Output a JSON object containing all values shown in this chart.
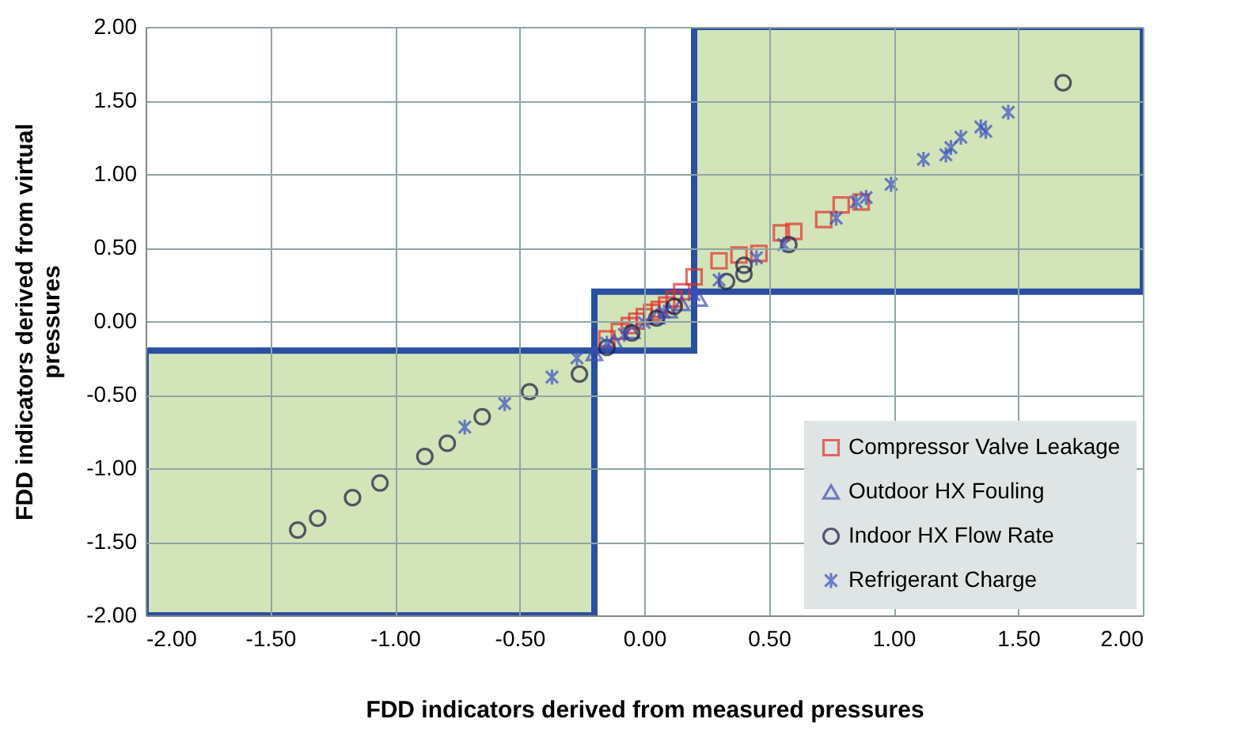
{
  "chart_data": {
    "type": "scatter",
    "xlabel": "FDD indicators derived from measured pressures",
    "ylabel": "FDD indicators derived from virtual pressures",
    "xlim": [
      -2,
      2
    ],
    "ylim": [
      -2,
      2
    ],
    "xticks": [
      {
        "value": -2,
        "label": "-2.00"
      },
      {
        "value": -1.5,
        "label": "-1.50"
      },
      {
        "value": -1,
        "label": "-1.00"
      },
      {
        "value": -0.5,
        "label": "-0.50"
      },
      {
        "value": 0,
        "label": "0.00"
      },
      {
        "value": 0.5,
        "label": "0.50"
      },
      {
        "value": 1,
        "label": "1.00"
      },
      {
        "value": 1.5,
        "label": "1.50"
      },
      {
        "value": 2,
        "label": "2.00"
      }
    ],
    "yticks": [
      {
        "value": -2,
        "label": "-2.00"
      },
      {
        "value": -1.5,
        "label": "-1.50"
      },
      {
        "value": -1,
        "label": "-1.00"
      },
      {
        "value": -0.5,
        "label": "-0.50"
      },
      {
        "value": 0,
        "label": "0.00"
      },
      {
        "value": 0.5,
        "label": "0.50"
      },
      {
        "value": 1,
        "label": "1.00"
      },
      {
        "value": 1.5,
        "label": "1.50"
      },
      {
        "value": 2,
        "label": "2.00"
      }
    ],
    "grid": true,
    "legend": "bottom right",
    "bands": [
      {
        "axis": "x",
        "from": -2,
        "to": -0.2,
        "color": "#d2e4b8"
      },
      {
        "axis": "x",
        "from": -0.2,
        "to": 0.2,
        "color": "#d2e4b8"
      },
      {
        "axis": "x",
        "from": 0.2,
        "to": 2,
        "color": "#d2e4b8"
      }
    ],
    "series": [
      {
        "name": "Compressor Valve Leakage",
        "color": "#e0302a",
        "marker": "square",
        "x": [
          -0.15,
          -0.1,
          -0.06,
          -0.03,
          0.0,
          0.03,
          0.06,
          0.09,
          0.12,
          0.15,
          0.2,
          0.3,
          0.38,
          0.46,
          0.55,
          0.6,
          0.72,
          0.79,
          0.87
        ],
        "values": [
          -0.12,
          -0.07,
          -0.03,
          0.0,
          0.03,
          0.06,
          0.08,
          0.11,
          0.15,
          0.2,
          0.3,
          0.41,
          0.45,
          0.46,
          0.6,
          0.61,
          0.69,
          0.79,
          0.81
        ]
      },
      {
        "name": "Outdoor HX Fouling",
        "color": "#4050b0",
        "marker": "triangle",
        "x": [
          -0.2,
          -0.12,
          -0.05,
          0.05,
          0.1,
          0.15,
          0.22
        ],
        "values": [
          -0.22,
          -0.14,
          -0.07,
          0.03,
          0.07,
          0.12,
          0.15
        ]
      },
      {
        "name": "Indoor HX Flow Rate",
        "color": "#1a1a40",
        "marker": "circle",
        "x": [
          -1.39,
          -1.31,
          -1.17,
          -1.06,
          -0.88,
          -0.79,
          -0.65,
          -0.46,
          -0.26,
          -0.15,
          -0.05,
          0.05,
          0.12,
          0.33,
          0.4,
          0.4,
          0.58,
          1.68
        ],
        "values": [
          -1.42,
          -1.34,
          -1.2,
          -1.1,
          -0.92,
          -0.83,
          -0.65,
          -0.48,
          -0.36,
          -0.18,
          -0.08,
          0.02,
          0.1,
          0.27,
          0.32,
          0.38,
          0.52,
          1.62
        ]
      },
      {
        "name": "Refrigerant Charge",
        "color": "#3a50c0",
        "marker": "cross",
        "x": [
          -0.72,
          -0.56,
          -0.37,
          -0.27,
          -0.15,
          -0.08,
          0.0,
          0.08,
          0.2,
          0.3,
          0.45,
          0.56,
          0.77,
          0.85,
          0.89,
          0.99,
          1.12,
          1.21,
          1.23,
          1.27,
          1.35,
          1.37,
          1.46
        ],
        "values": [
          -0.72,
          -0.56,
          -0.38,
          -0.25,
          -0.15,
          -0.09,
          -0.01,
          0.06,
          0.18,
          0.28,
          0.43,
          0.52,
          0.7,
          0.81,
          0.84,
          0.93,
          1.1,
          1.13,
          1.18,
          1.25,
          1.32,
          1.29,
          1.42
        ]
      }
    ]
  }
}
